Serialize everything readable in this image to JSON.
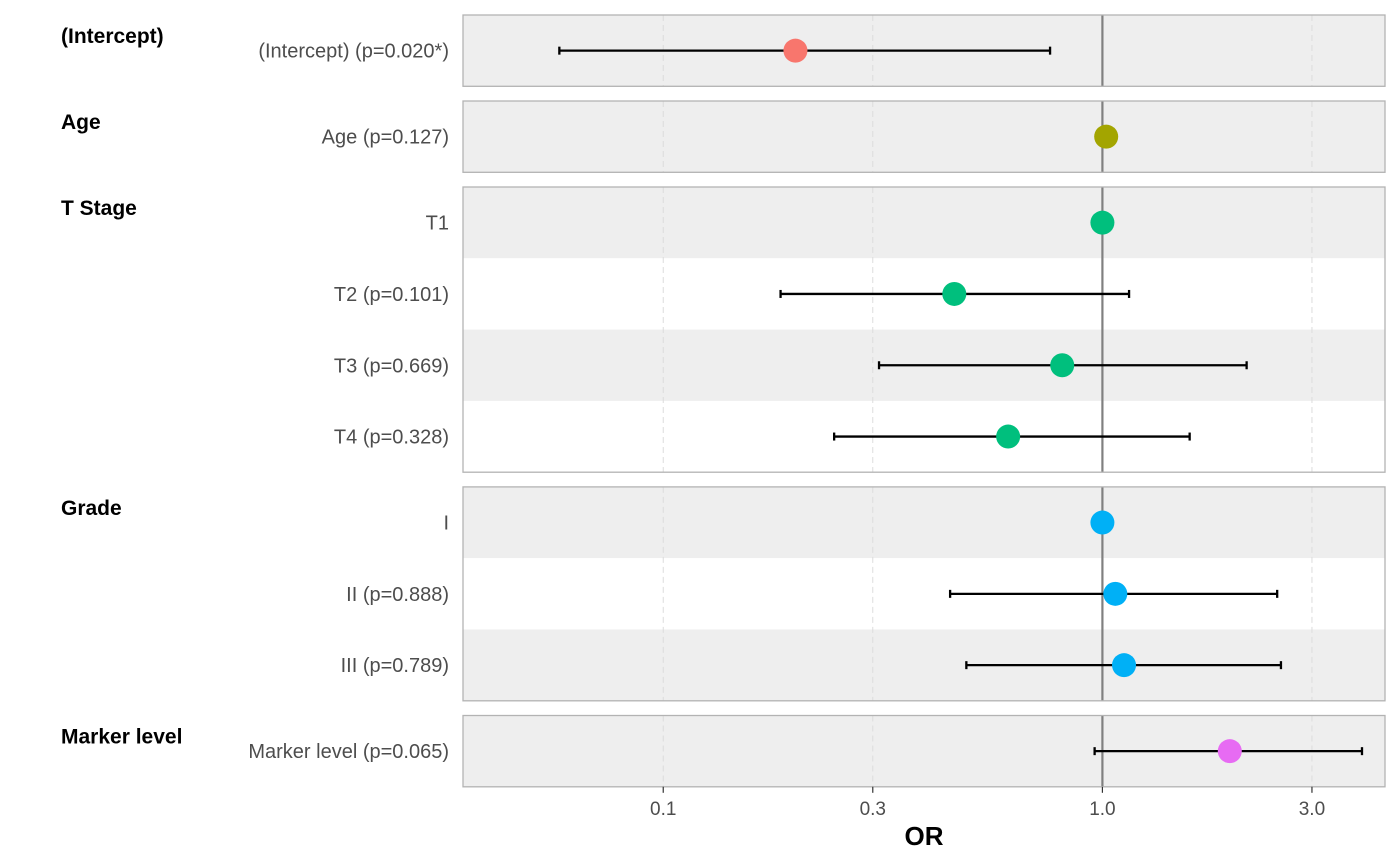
{
  "chart_data": {
    "type": "forest",
    "xlabel": "OR",
    "x_scale": "log",
    "xlim": [
      0.035,
      4.4
    ],
    "x_ticks": [
      0.1,
      0.3,
      1.0,
      3.0
    ],
    "x_tick_labels": [
      "0.1",
      "0.3",
      "1.0",
      "3.0"
    ],
    "reference_line": 1.0,
    "grid": true,
    "groups": [
      {
        "name": "(Intercept)",
        "color": "#F8766D",
        "rows": [
          {
            "label": "(Intercept) (p=0.020*)",
            "or": 0.2,
            "lower": 0.058,
            "upper": 0.76
          }
        ]
      },
      {
        "name": "Age",
        "color": "#A3A500",
        "rows": [
          {
            "label": "Age (p=0.127)",
            "or": 1.02,
            "lower": null,
            "upper": null
          }
        ]
      },
      {
        "name": "T Stage",
        "color": "#00BF7D",
        "rows": [
          {
            "label": "T1",
            "or": 1.0,
            "lower": null,
            "upper": null
          },
          {
            "label": "T2 (p=0.101)",
            "or": 0.46,
            "lower": 0.185,
            "upper": 1.15
          },
          {
            "label": "T3 (p=0.669)",
            "or": 0.81,
            "lower": 0.31,
            "upper": 2.13
          },
          {
            "label": "T4 (p=0.328)",
            "or": 0.61,
            "lower": 0.245,
            "upper": 1.58
          }
        ]
      },
      {
        "name": "Grade",
        "color": "#00B0F6",
        "rows": [
          {
            "label": "I",
            "or": 1.0,
            "lower": null,
            "upper": null
          },
          {
            "label": "II (p=0.888)",
            "or": 1.07,
            "lower": 0.45,
            "upper": 2.5
          },
          {
            "label": "III (p=0.789)",
            "or": 1.12,
            "lower": 0.49,
            "upper": 2.55
          }
        ]
      },
      {
        "name": "Marker level",
        "color": "#E76BF3",
        "rows": [
          {
            "label": "Marker level (p=0.065)",
            "or": 1.95,
            "lower": 0.96,
            "upper": 3.9
          }
        ]
      }
    ]
  }
}
